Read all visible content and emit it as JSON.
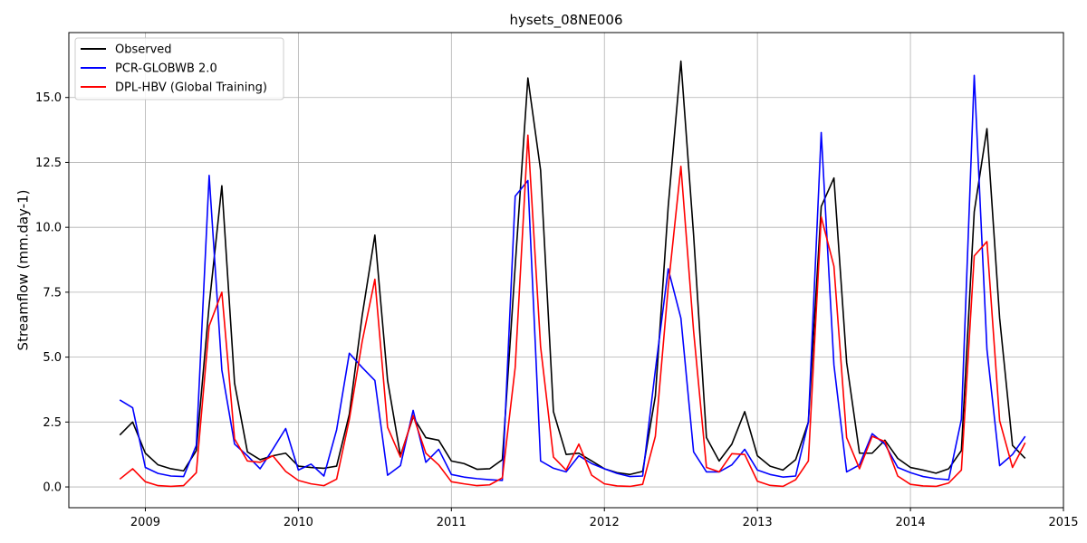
{
  "chart_data": {
    "type": "line",
    "title": "hysets_08NE006",
    "xlabel": "",
    "ylabel": "Streamflow (mm.day-1)",
    "grid": true,
    "legend_position": "top-left",
    "xlim": [
      2008.5,
      2015.0
    ],
    "ylim": [
      -0.8,
      17.5
    ],
    "xticks": [
      2009,
      2010,
      2011,
      2012,
      2013,
      2014,
      2015
    ],
    "xtick_labels": [
      "2009",
      "2010",
      "2011",
      "2012",
      "2013",
      "2014",
      "2015"
    ],
    "yticks": [
      0.0,
      2.5,
      5.0,
      7.5,
      10.0,
      12.5,
      15.0
    ],
    "ytick_labels": [
      "0.0",
      "2.5",
      "5.0",
      "7.5",
      "10.0",
      "12.5",
      "15.0"
    ],
    "x": [
      2008.833,
      2008.917,
      2009.0,
      2009.083,
      2009.167,
      2009.25,
      2009.333,
      2009.417,
      2009.5,
      2009.583,
      2009.667,
      2009.75,
      2009.833,
      2009.917,
      2010.0,
      2010.083,
      2010.167,
      2010.25,
      2010.333,
      2010.417,
      2010.5,
      2010.583,
      2010.667,
      2010.75,
      2010.833,
      2010.917,
      2011.0,
      2011.083,
      2011.167,
      2011.25,
      2011.333,
      2011.417,
      2011.5,
      2011.583,
      2011.667,
      2011.75,
      2011.833,
      2011.917,
      2012.0,
      2012.083,
      2012.167,
      2012.25,
      2012.333,
      2012.417,
      2012.5,
      2012.583,
      2012.667,
      2012.75,
      2012.833,
      2012.917,
      2013.0,
      2013.083,
      2013.167,
      2013.25,
      2013.333,
      2013.417,
      2013.5,
      2013.583,
      2013.667,
      2013.75,
      2013.833,
      2013.917,
      2014.0,
      2014.083,
      2014.167,
      2014.25,
      2014.333,
      2014.417,
      2014.5,
      2014.583,
      2014.667,
      2014.75
    ],
    "series": [
      {
        "name": "Observed",
        "color": "#000000",
        "values": [
          2.0,
          2.5,
          1.3,
          0.85,
          0.7,
          0.62,
          1.4,
          7.0,
          11.6,
          4.0,
          1.35,
          1.05,
          1.2,
          1.3,
          0.8,
          0.75,
          0.72,
          0.8,
          2.8,
          6.6,
          9.7,
          4.1,
          1.2,
          2.7,
          1.9,
          1.8,
          1.0,
          0.9,
          0.68,
          0.7,
          1.05,
          8.5,
          15.75,
          12.2,
          2.9,
          1.25,
          1.3,
          1.0,
          0.7,
          0.55,
          0.48,
          0.6,
          3.5,
          10.8,
          16.4,
          9.7,
          1.9,
          1.0,
          1.65,
          2.9,
          1.2,
          0.8,
          0.65,
          1.05,
          2.5,
          10.8,
          11.9,
          4.8,
          1.3,
          1.3,
          1.8,
          1.1,
          0.75,
          0.65,
          0.53,
          0.7,
          1.4,
          10.6,
          13.8,
          6.5,
          1.6,
          1.1
        ]
      },
      {
        "name": "PCR-GLOBWB 2.0",
        "color": "#0000ff",
        "values": [
          3.35,
          3.05,
          0.75,
          0.52,
          0.42,
          0.4,
          1.6,
          12.0,
          4.5,
          1.65,
          1.2,
          0.7,
          1.45,
          2.25,
          0.65,
          0.88,
          0.42,
          2.2,
          5.15,
          4.6,
          4.1,
          0.45,
          0.82,
          2.95,
          0.95,
          1.45,
          0.48,
          0.38,
          0.32,
          0.28,
          0.25,
          11.2,
          11.8,
          1.0,
          0.72,
          0.58,
          1.2,
          0.9,
          0.7,
          0.52,
          0.4,
          0.42,
          4.5,
          8.4,
          6.5,
          1.35,
          0.58,
          0.58,
          0.85,
          1.45,
          0.65,
          0.48,
          0.38,
          0.42,
          2.5,
          13.65,
          4.7,
          0.58,
          0.85,
          2.05,
          1.65,
          0.75,
          0.55,
          0.4,
          0.32,
          0.28,
          2.6,
          15.85,
          5.3,
          0.82,
          1.25,
          1.95
        ]
      },
      {
        "name": "DPL-HBV (Global Training)",
        "color": "#ff0000",
        "values": [
          0.3,
          0.7,
          0.2,
          0.05,
          0.02,
          0.05,
          0.55,
          6.2,
          7.5,
          1.85,
          1.0,
          0.95,
          1.2,
          0.6,
          0.25,
          0.12,
          0.05,
          0.3,
          2.6,
          5.6,
          8.0,
          2.3,
          1.15,
          2.75,
          1.3,
          0.85,
          0.2,
          0.12,
          0.05,
          0.08,
          0.35,
          4.6,
          13.55,
          5.4,
          1.15,
          0.65,
          1.65,
          0.45,
          0.12,
          0.04,
          0.02,
          0.1,
          1.95,
          7.7,
          12.35,
          6.0,
          0.75,
          0.58,
          1.28,
          1.25,
          0.22,
          0.06,
          0.02,
          0.28,
          1.0,
          10.4,
          8.5,
          1.9,
          0.7,
          1.95,
          1.75,
          0.42,
          0.1,
          0.04,
          0.02,
          0.15,
          0.65,
          8.9,
          9.45,
          2.55,
          0.75,
          1.7
        ]
      }
    ]
  }
}
